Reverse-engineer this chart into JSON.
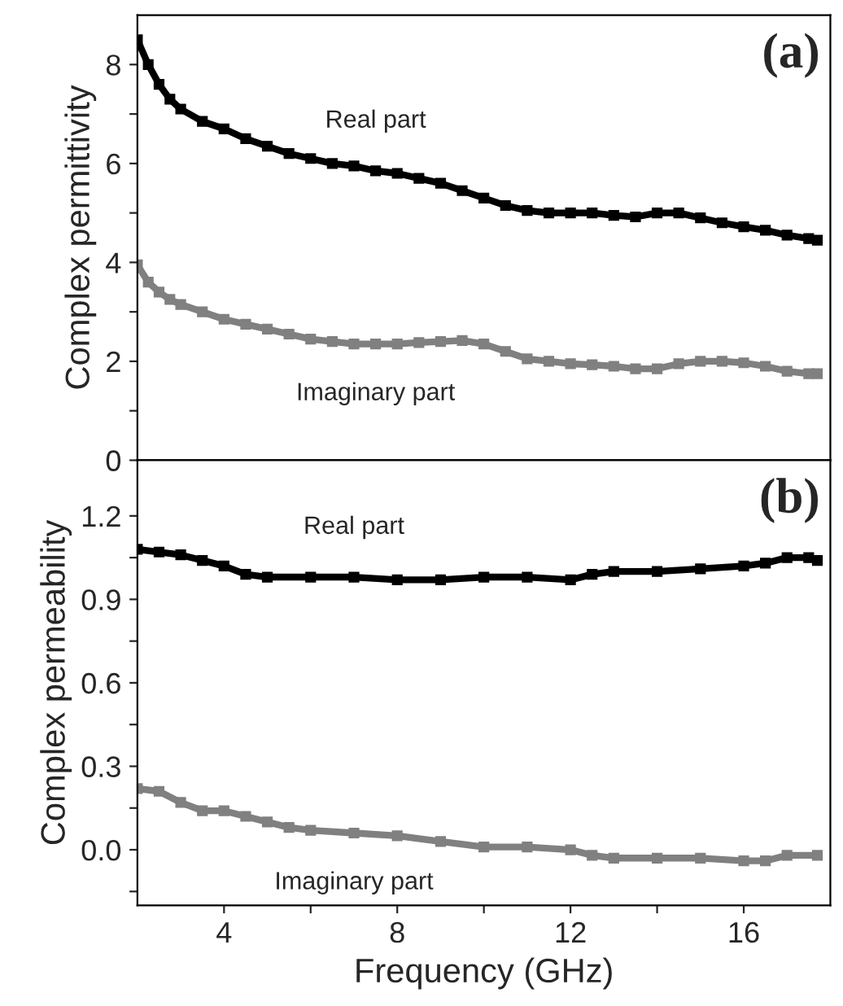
{
  "chart_data": [
    {
      "type": "line",
      "title": "(a)",
      "ylabel": "Complex permittivity",
      "marker": "square",
      "line_style": "solid",
      "grid": false,
      "legend": false,
      "tick_labels": "y",
      "xlim": [
        2,
        18
      ],
      "ylim": [
        0,
        9
      ],
      "xticks": [
        {
          "value": 4,
          "label": null
        },
        {
          "value": 6,
          "label": null
        },
        {
          "value": 8,
          "label": null
        },
        {
          "value": 10,
          "label": null
        },
        {
          "value": 12,
          "label": null
        },
        {
          "value": 14,
          "label": null
        },
        {
          "value": 16,
          "label": null
        }
      ],
      "yticks": [
        0,
        {
          "value": 1,
          "label": null
        },
        2,
        {
          "value": 3,
          "label": null
        },
        4,
        {
          "value": 5,
          "label": null
        },
        6,
        {
          "value": 7,
          "label": null
        },
        8
      ],
      "series": [
        {
          "name": "Real part",
          "color": "#000000",
          "x": [
            2,
            2.25,
            2.5,
            2.75,
            3,
            3.5,
            4,
            4.5,
            5,
            5.5,
            6,
            6.5,
            7,
            7.5,
            8,
            8.5,
            9,
            9.5,
            10,
            10.5,
            11,
            11.5,
            12,
            12.5,
            13,
            13.5,
            14,
            14.5,
            15,
            15.5,
            16,
            16.5,
            17,
            17.5,
            17.7
          ],
          "values": [
            8.5,
            8.0,
            7.6,
            7.3,
            7.1,
            6.85,
            6.7,
            6.5,
            6.35,
            6.2,
            6.1,
            6.0,
            5.95,
            5.85,
            5.8,
            5.7,
            5.6,
            5.45,
            5.3,
            5.15,
            5.05,
            5.0,
            5.0,
            5.0,
            4.95,
            4.92,
            5.0,
            5.0,
            4.9,
            4.8,
            4.72,
            4.65,
            4.55,
            4.48,
            4.45
          ]
        },
        {
          "name": "Imaginary part",
          "color": "#808080",
          "x": [
            2,
            2.25,
            2.5,
            2.75,
            3,
            3.5,
            4,
            4.5,
            5,
            5.5,
            6,
            6.5,
            7,
            7.5,
            8,
            8.5,
            9,
            9.5,
            10,
            10.5,
            11,
            11.5,
            12,
            12.5,
            13,
            13.5,
            14,
            14.5,
            15,
            15.5,
            16,
            16.5,
            17,
            17.5,
            17.7
          ],
          "values": [
            3.95,
            3.6,
            3.4,
            3.25,
            3.15,
            3.0,
            2.85,
            2.75,
            2.65,
            2.55,
            2.45,
            2.4,
            2.35,
            2.35,
            2.35,
            2.38,
            2.4,
            2.42,
            2.35,
            2.2,
            2.05,
            2.0,
            1.95,
            1.93,
            1.9,
            1.85,
            1.85,
            1.95,
            2.0,
            2.0,
            1.97,
            1.9,
            1.8,
            1.75,
            1.75
          ]
        }
      ]
    },
    {
      "type": "line",
      "title": "(b)",
      "ylabel": "Complex permeability",
      "xlabel": "Frequency (GHz)",
      "marker": "square",
      "line_style": "solid",
      "grid": false,
      "legend": false,
      "xlim": [
        2,
        18
      ],
      "ylim": [
        -0.2,
        1.4
      ],
      "xticks": [
        4,
        {
          "value": 6,
          "label": null
        },
        8,
        {
          "value": 10,
          "label": null
        },
        12,
        {
          "value": 14,
          "label": null
        },
        16
      ],
      "yticks": [
        {
          "value": -0.15,
          "label": null
        },
        {
          "value": 0,
          "label": "0.0"
        },
        {
          "value": 0.15,
          "label": null
        },
        0.3,
        {
          "value": 0.45,
          "label": null
        },
        0.6,
        {
          "value": 0.75,
          "label": null
        },
        0.9,
        {
          "value": 1.05,
          "label": null
        },
        1.2
      ],
      "series": [
        {
          "name": "Real part",
          "color": "#000000",
          "x": [
            2,
            2.5,
            3,
            3.5,
            4,
            4.5,
            5,
            6,
            7,
            8,
            9,
            10,
            11,
            12,
            12.5,
            13,
            14,
            15,
            16,
            16.5,
            17,
            17.5,
            17.7
          ],
          "values": [
            1.08,
            1.07,
            1.06,
            1.04,
            1.02,
            0.99,
            0.98,
            0.98,
            0.98,
            0.97,
            0.97,
            0.98,
            0.98,
            0.97,
            0.99,
            1.0,
            1.0,
            1.01,
            1.02,
            1.03,
            1.05,
            1.05,
            1.04
          ]
        },
        {
          "name": "Imaginary part",
          "color": "#808080",
          "x": [
            2,
            2.5,
            3,
            3.5,
            4,
            4.5,
            5,
            5.5,
            6,
            7,
            8,
            9,
            10,
            11,
            12,
            12.5,
            13,
            14,
            15,
            16,
            16.5,
            17,
            17.7
          ],
          "values": [
            0.22,
            0.21,
            0.17,
            0.14,
            0.14,
            0.12,
            0.1,
            0.08,
            0.07,
            0.06,
            0.05,
            0.03,
            0.01,
            0.01,
            0.0,
            -0.02,
            -0.03,
            -0.03,
            -0.03,
            -0.04,
            -0.04,
            -0.02,
            -0.02
          ]
        }
      ]
    }
  ]
}
